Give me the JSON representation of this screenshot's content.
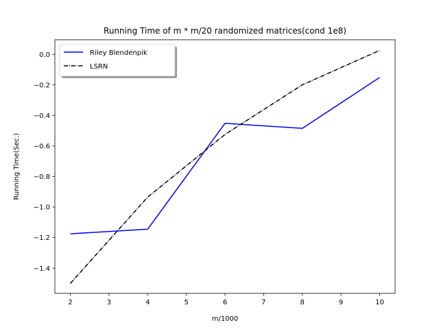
{
  "chart_data": {
    "type": "line",
    "title": "Running Time of m * m/20 randomized matrices(cond 1e8)",
    "xlabel": "m/1000",
    "ylabel": "Running Time(Sec.)",
    "xlim": [
      1.6,
      10.4
    ],
    "ylim": [
      -1.565,
      0.095
    ],
    "xticks": [
      2,
      3,
      4,
      5,
      6,
      7,
      8,
      9,
      10
    ],
    "xtick_labels": [
      "2",
      "3",
      "4",
      "5",
      "6",
      "7",
      "8",
      "9",
      "10"
    ],
    "yticks": [
      -1.4,
      -1.2,
      -1.0,
      -0.8,
      -0.6,
      -0.4,
      -0.2,
      0.0
    ],
    "ytick_labels": [
      "−1.4",
      "−1.2",
      "−1.0",
      "−0.8",
      "−0.6",
      "−0.4",
      "−0.2",
      "0.0"
    ],
    "grid": false,
    "legend_position": "top-left",
    "series": [
      {
        "name": "Riley Blendenpik",
        "color": "#0000ff",
        "line_style": "solid",
        "x": [
          2,
          4,
          6,
          8,
          10
        ],
        "y": [
          -1.175,
          -1.145,
          -0.452,
          -0.485,
          -0.152
        ]
      },
      {
        "name": "LSRN",
        "color": "#000000",
        "line_style": "dashdot",
        "x": [
          2,
          4,
          6,
          8,
          10
        ],
        "y": [
          -1.5,
          -0.935,
          -0.525,
          -0.2,
          0.025
        ]
      }
    ]
  }
}
